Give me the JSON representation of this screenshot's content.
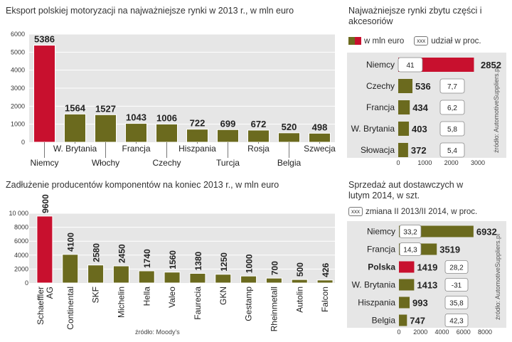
{
  "chart_data": [
    {
      "id": "export",
      "type": "bar",
      "title": "Eksport polskiej motoryzacji na najważniejsze rynki w 2013 r., w mln euro",
      "categories": [
        "Niemcy",
        "W. Brytania",
        "Włochy",
        "Francja",
        "Czechy",
        "Hiszpania",
        "Turcja",
        "Rosja",
        "Belgia",
        "Szwecja"
      ],
      "values": [
        5386,
        1564,
        1527,
        1043,
        1006,
        722,
        699,
        672,
        520,
        498
      ],
      "value_labels": [
        "5386",
        "1564",
        "1527",
        "1043",
        "1006",
        "722",
        "699",
        "672",
        "520",
        "498"
      ],
      "yticks": [
        "0",
        "1000",
        "2000",
        "3000",
        "4000",
        "5000",
        "6000"
      ],
      "ylim": [
        0,
        6000
      ],
      "grid": true,
      "highlight_index": 0
    },
    {
      "id": "parts",
      "type": "bar",
      "orientation": "horizontal",
      "title": "Najważniejsze rynki zbytu części i akcesoriów",
      "legend": {
        "value_label": "w mln euro",
        "box_text": "xxx",
        "share_label": "udział w proc."
      },
      "categories": [
        "Niemcy",
        "Czechy",
        "Francja",
        "W. Brytania",
        "Słowacja"
      ],
      "values": [
        2852,
        536,
        434,
        403,
        372
      ],
      "value_labels": [
        "2852",
        "536",
        "434",
        "403",
        "372"
      ],
      "share": [
        "41",
        "7,7",
        "6,2",
        "5,8",
        "5,4"
      ],
      "xticks": [
        "0",
        "1000",
        "2000",
        "3000"
      ],
      "xlim": [
        0,
        3000
      ],
      "source": "źródło: AutomotiveSuppliers.pl",
      "highlight_index": 0
    },
    {
      "id": "debt",
      "type": "bar",
      "title": "Zadłużenie producentów komponentów na koniec 2013 r., w mln euro",
      "categories": [
        "Schaeffler AG",
        "Continental",
        "SKF",
        "Michelin",
        "Hella",
        "Valeo",
        "Faurecia",
        "GKN",
        "Gestamp",
        "Rheinmetall",
        "Autolin",
        "Falcon"
      ],
      "values": [
        9600,
        4100,
        2580,
        2450,
        1740,
        1560,
        1380,
        1250,
        1000,
        700,
        500,
        426
      ],
      "value_labels": [
        "9600",
        "4100",
        "2580",
        "2450",
        "1740",
        "1560",
        "1380",
        "1250",
        "1000",
        "700",
        "500",
        "426"
      ],
      "yticks": [
        "0",
        "2000",
        "4000",
        "6000",
        "8000",
        "10 000"
      ],
      "ylim": [
        0,
        10000
      ],
      "grid": true,
      "source": "źródło: Moody's",
      "highlight_index": 0
    },
    {
      "id": "vans",
      "type": "bar",
      "orientation": "horizontal",
      "title": "Sprzedaż aut dostawczych w lutym 2014, w szt.",
      "legend": {
        "box_text": "xxx",
        "change_label": "zmiana II 2013/II 2014, w proc."
      },
      "categories": [
        "Niemcy",
        "Francja",
        "Polska",
        "W. Brytania",
        "Hiszpania",
        "Belgia"
      ],
      "values": [
        6932,
        3519,
        1419,
        1413,
        993,
        747
      ],
      "value_labels": [
        "6932",
        "3519",
        "1419",
        "1413",
        "993",
        "747"
      ],
      "change": [
        "33,2",
        "14,3",
        "28,2",
        "-31",
        "35,8",
        "42,3"
      ],
      "xticks": [
        "0",
        "2000",
        "4000",
        "6000",
        "8000"
      ],
      "xlim": [
        0,
        8000
      ],
      "source": "źródło: AutomotiveSuppliers.pl",
      "highlight_index": 2
    }
  ],
  "colors": {
    "olive": "#6b6a1e",
    "red": "#c8102e",
    "panel": "#e6e6e6"
  }
}
